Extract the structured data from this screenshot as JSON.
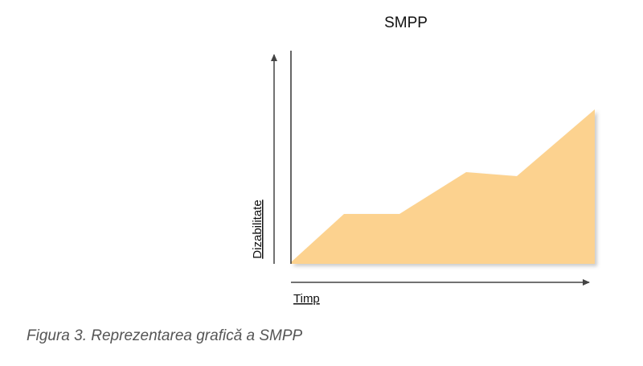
{
  "figure": {
    "title": "SMPP",
    "x_label": "Timp",
    "y_label": "Dizabilitate"
  },
  "caption": "Figura 3. Reprezentarea grafică a SMPP"
}
